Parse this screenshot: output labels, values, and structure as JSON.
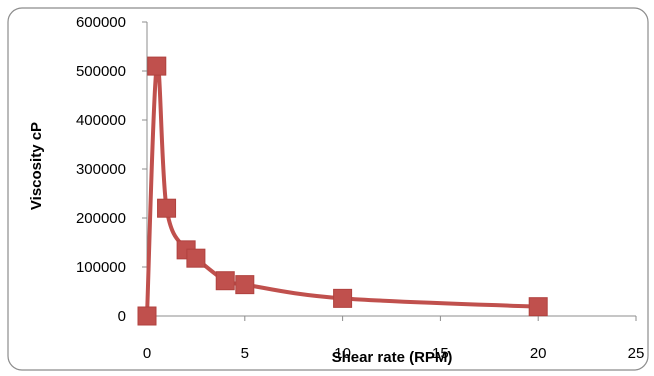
{
  "chart_data": {
    "type": "scatter",
    "title": "",
    "xlabel": "Shear rate (RPM)",
    "ylabel": "Viscosity cP",
    "xlim": [
      0,
      25
    ],
    "ylim": [
      0,
      600000
    ],
    "x_ticks": [
      0,
      5,
      10,
      15,
      20,
      25
    ],
    "y_ticks": [
      0,
      100000,
      200000,
      300000,
      400000,
      500000,
      600000
    ],
    "x_tick_labels": [
      "0",
      "5",
      "10",
      "15",
      "20",
      "25"
    ],
    "y_tick_labels": [
      "0",
      "100000",
      "200000",
      "300000",
      "400000",
      "500000",
      "600000"
    ],
    "grid": false,
    "legend": "none",
    "marker": "square",
    "line": "smooth",
    "series": [
      {
        "color": "#c0504d",
        "x": [
          0,
          0.5,
          1,
          2,
          2.5,
          4,
          5,
          10,
          20
        ],
        "y": [
          0,
          510000,
          220000,
          135000,
          118000,
          72000,
          64000,
          36000,
          19000
        ]
      }
    ]
  }
}
